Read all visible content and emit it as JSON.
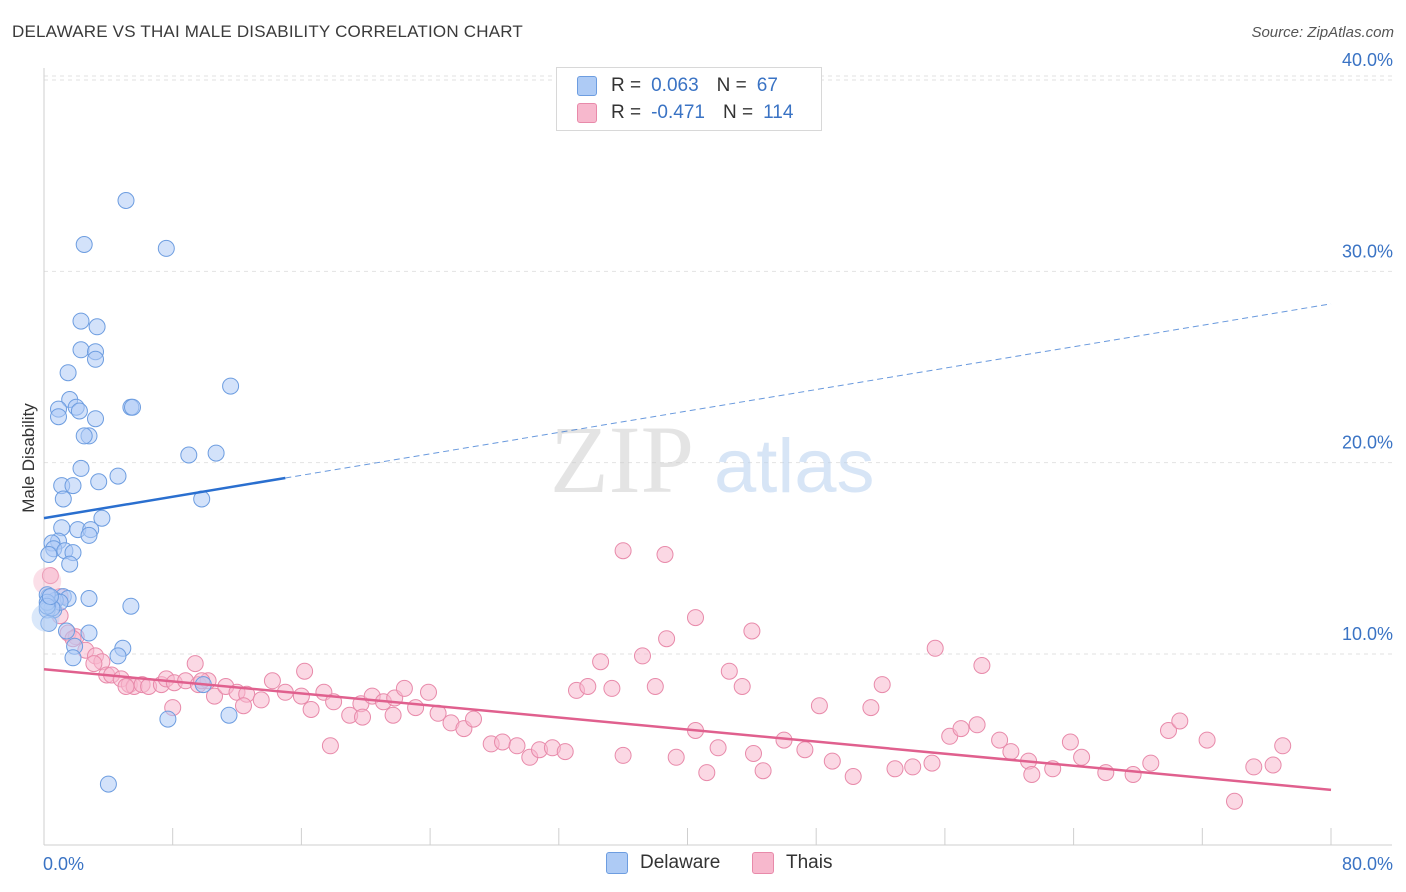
{
  "header": {
    "title": "DELAWARE VS THAI MALE DISABILITY CORRELATION CHART",
    "source": "Source: ZipAtlas.com"
  },
  "watermark": {
    "zip": "ZIP",
    "atlas": "atlas"
  },
  "legend": {
    "rows": [
      {
        "r_label": "R =",
        "r_value": "0.063",
        "n_label": "N =",
        "n_value": "67"
      },
      {
        "r_label": "R =",
        "r_value": "-0.471",
        "n_label": "N =",
        "n_value": "114"
      }
    ]
  },
  "colors": {
    "delaware_fill": "#aecbf5",
    "delaware_stroke": "#6d9de0",
    "delaware_line": "#2a6fcf",
    "thais_fill": "#f7b8cd",
    "thais_stroke": "#e88aaa",
    "thais_line": "#e0608e",
    "axis_label": "#3a73c4",
    "grid": "#e2e2e2"
  },
  "chart_data": {
    "type": "scatter",
    "title": "DELAWARE VS THAI MALE DISABILITY CORRELATION CHART",
    "xlabel": "",
    "ylabel": "Male Disability",
    "xlim": [
      0,
      80
    ],
    "ylim": [
      0,
      42
    ],
    "x_tick_labels": [
      "0.0%",
      "80.0%"
    ],
    "y_ticks": [
      10,
      20,
      30,
      40
    ],
    "y_tick_labels": [
      "10.0%",
      "20.0%",
      "30.0%",
      "40.0%"
    ],
    "grid": true,
    "legend_position": "bottom-center",
    "series": [
      {
        "name": "Delaware",
        "r": 0.063,
        "n": 67,
        "trend": {
          "x": [
            0,
            15
          ],
          "y": [
            17.1,
            19.2
          ],
          "extended": {
            "x": [
              15,
              80
            ],
            "y": [
              19.2,
              28.3
            ]
          }
        },
        "points": [
          [
            5.1,
            33.7
          ],
          [
            2.5,
            31.4
          ],
          [
            7.6,
            31.2
          ],
          [
            2.3,
            27.4
          ],
          [
            3.3,
            27.1
          ],
          [
            2.3,
            25.9
          ],
          [
            3.2,
            25.8
          ],
          [
            3.2,
            25.4
          ],
          [
            1.5,
            24.7
          ],
          [
            11.6,
            24.0
          ],
          [
            1.6,
            23.3
          ],
          [
            2.0,
            22.9
          ],
          [
            0.9,
            22.8
          ],
          [
            5.4,
            22.9
          ],
          [
            5.5,
            22.9
          ],
          [
            2.2,
            22.7
          ],
          [
            0.9,
            22.4
          ],
          [
            3.2,
            22.3
          ],
          [
            2.8,
            21.4
          ],
          [
            2.5,
            21.4
          ],
          [
            9.0,
            20.4
          ],
          [
            10.7,
            20.5
          ],
          [
            2.3,
            19.7
          ],
          [
            4.6,
            19.3
          ],
          [
            3.4,
            19.0
          ],
          [
            1.1,
            18.8
          ],
          [
            1.8,
            18.8
          ],
          [
            1.2,
            18.1
          ],
          [
            9.8,
            18.1
          ],
          [
            3.6,
            17.1
          ],
          [
            1.1,
            16.6
          ],
          [
            2.1,
            16.5
          ],
          [
            2.9,
            16.5
          ],
          [
            2.8,
            16.2
          ],
          [
            0.9,
            15.9
          ],
          [
            0.5,
            15.8
          ],
          [
            0.6,
            15.5
          ],
          [
            1.3,
            15.4
          ],
          [
            1.8,
            15.3
          ],
          [
            0.3,
            15.2
          ],
          [
            1.6,
            14.7
          ],
          [
            0.3,
            13.0
          ],
          [
            1.2,
            13.0
          ],
          [
            1.5,
            12.9
          ],
          [
            2.8,
            12.9
          ],
          [
            0.7,
            12.8
          ],
          [
            0.3,
            12.6
          ],
          [
            5.4,
            12.5
          ],
          [
            0.6,
            12.3
          ],
          [
            0.2,
            12.3
          ],
          [
            1.4,
            11.2
          ],
          [
            2.8,
            11.1
          ],
          [
            1.9,
            10.4
          ],
          [
            4.9,
            10.3
          ],
          [
            1.8,
            9.8
          ],
          [
            4.6,
            9.9
          ],
          [
            9.9,
            8.4
          ],
          [
            7.7,
            6.6
          ],
          [
            11.5,
            6.8
          ],
          [
            4.0,
            3.2
          ],
          [
            0.3,
            11.6
          ],
          [
            1.0,
            12.7
          ],
          [
            0.2,
            13.1
          ],
          [
            0.5,
            12.4
          ],
          [
            0.2,
            12.7
          ],
          [
            0.2,
            12.5
          ],
          [
            0.4,
            13.0
          ]
        ]
      },
      {
        "name": "Thais",
        "r": -0.471,
        "n": 114,
        "trend": {
          "x": [
            0,
            80
          ],
          "y": [
            9.2,
            2.9
          ]
        },
        "points": [
          [
            0.4,
            14.1
          ],
          [
            1.0,
            12.0
          ],
          [
            1.0,
            13.0
          ],
          [
            1.5,
            11.1
          ],
          [
            2.0,
            10.9
          ],
          [
            1.8,
            10.8
          ],
          [
            2.6,
            10.2
          ],
          [
            3.2,
            9.9
          ],
          [
            3.6,
            9.6
          ],
          [
            3.1,
            9.5
          ],
          [
            3.9,
            8.9
          ],
          [
            4.2,
            8.9
          ],
          [
            4.8,
            8.7
          ],
          [
            5.3,
            8.4
          ],
          [
            5.6,
            8.3
          ],
          [
            5.1,
            8.3
          ],
          [
            6.1,
            8.4
          ],
          [
            6.5,
            8.3
          ],
          [
            7.3,
            8.4
          ],
          [
            7.6,
            8.7
          ],
          [
            8.1,
            8.5
          ],
          [
            8.8,
            8.6
          ],
          [
            9.4,
            9.5
          ],
          [
            9.6,
            8.4
          ],
          [
            10.2,
            8.6
          ],
          [
            10.6,
            7.8
          ],
          [
            11.3,
            8.3
          ],
          [
            12.0,
            8.0
          ],
          [
            12.6,
            7.9
          ],
          [
            13.5,
            7.6
          ],
          [
            14.2,
            8.6
          ],
          [
            15.0,
            8.0
          ],
          [
            16.0,
            7.8
          ],
          [
            16.6,
            7.1
          ],
          [
            17.4,
            8.0
          ],
          [
            18.0,
            7.5
          ],
          [
            19.0,
            6.8
          ],
          [
            19.7,
            7.4
          ],
          [
            20.4,
            7.8
          ],
          [
            21.1,
            7.5
          ],
          [
            21.8,
            7.7
          ],
          [
            22.4,
            8.2
          ],
          [
            23.1,
            7.2
          ],
          [
            23.9,
            8.0
          ],
          [
            24.5,
            6.9
          ],
          [
            25.3,
            6.4
          ],
          [
            26.1,
            6.1
          ],
          [
            26.7,
            6.6
          ],
          [
            27.8,
            5.3
          ],
          [
            28.5,
            5.4
          ],
          [
            29.4,
            5.2
          ],
          [
            30.2,
            4.6
          ],
          [
            30.8,
            5.0
          ],
          [
            31.6,
            5.1
          ],
          [
            32.4,
            4.9
          ],
          [
            33.1,
            8.1
          ],
          [
            33.8,
            8.3
          ],
          [
            34.6,
            9.6
          ],
          [
            35.3,
            8.2
          ],
          [
            36.0,
            4.7
          ],
          [
            37.2,
            9.9
          ],
          [
            38.0,
            8.3
          ],
          [
            38.7,
            10.8
          ],
          [
            39.3,
            4.6
          ],
          [
            40.5,
            6.0
          ],
          [
            41.2,
            3.8
          ],
          [
            41.9,
            5.1
          ],
          [
            42.6,
            9.1
          ],
          [
            43.4,
            8.3
          ],
          [
            44.1,
            4.8
          ],
          [
            44.7,
            3.9
          ],
          [
            46.0,
            5.5
          ],
          [
            47.3,
            5.0
          ],
          [
            48.2,
            7.3
          ],
          [
            49.0,
            4.4
          ],
          [
            50.3,
            3.6
          ],
          [
            51.4,
            7.2
          ],
          [
            52.1,
            8.4
          ],
          [
            52.9,
            4.0
          ],
          [
            54.0,
            4.1
          ],
          [
            55.2,
            4.3
          ],
          [
            56.3,
            5.7
          ],
          [
            57.0,
            6.1
          ],
          [
            58.0,
            6.3
          ],
          [
            59.4,
            5.5
          ],
          [
            60.1,
            4.9
          ],
          [
            61.2,
            4.4
          ],
          [
            62.7,
            4.0
          ],
          [
            63.8,
            5.4
          ],
          [
            64.5,
            4.6
          ],
          [
            66.0,
            3.8
          ],
          [
            67.7,
            3.7
          ],
          [
            68.8,
            4.3
          ],
          [
            69.9,
            6.0
          ],
          [
            70.6,
            6.5
          ],
          [
            72.3,
            5.5
          ],
          [
            74.0,
            2.3
          ],
          [
            75.2,
            4.1
          ],
          [
            76.4,
            4.2
          ],
          [
            77.0,
            5.2
          ],
          [
            61.4,
            3.7
          ],
          [
            58.3,
            9.4
          ],
          [
            55.4,
            10.3
          ],
          [
            40.5,
            11.9
          ],
          [
            44.0,
            11.2
          ],
          [
            36.0,
            15.4
          ],
          [
            38.6,
            15.2
          ],
          [
            8.0,
            7.2
          ],
          [
            9.8,
            8.6
          ],
          [
            12.4,
            7.3
          ],
          [
            16.2,
            9.1
          ],
          [
            17.8,
            5.2
          ],
          [
            19.8,
            6.7
          ],
          [
            21.7,
            6.8
          ]
        ]
      }
    ]
  },
  "axis": {
    "ylabel": "Male Disability",
    "x_min_label": "0.0%",
    "x_max_label": "80.0%"
  },
  "bottom_legend": [
    {
      "label": "Delaware"
    },
    {
      "label": "Thais"
    }
  ]
}
